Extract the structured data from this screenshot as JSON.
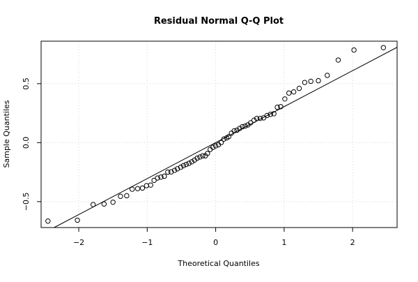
{
  "chart_data": {
    "type": "scatter",
    "title": "Residual Normal Q-Q Plot",
    "xlabel": "Theoretical Quantiles",
    "ylabel": "Sample Quantiles",
    "xlim": [
      -2.55,
      2.65
    ],
    "ylim": [
      -0.72,
      0.86
    ],
    "x_ticks": [
      -2,
      -1,
      0,
      1,
      2
    ],
    "x_tick_labels": [
      "−2",
      "−1",
      "0",
      "1",
      "2"
    ],
    "y_ticks": [
      -0.5,
      0.0,
      0.5
    ],
    "y_tick_labels": [
      "−0.5",
      "0.0",
      "0.5"
    ],
    "grid": true,
    "reference_line": {
      "intercept": 0.0,
      "slope": 0.305
    },
    "points": [
      [
        -2.45,
        -0.665
      ],
      [
        -2.02,
        -0.658
      ],
      [
        -1.79,
        -0.525
      ],
      [
        -1.63,
        -0.52
      ],
      [
        -1.5,
        -0.505
      ],
      [
        -1.39,
        -0.455
      ],
      [
        -1.3,
        -0.45
      ],
      [
        -1.22,
        -0.395
      ],
      [
        -1.14,
        -0.39
      ],
      [
        -1.07,
        -0.385
      ],
      [
        -1.01,
        -0.365
      ],
      [
        -0.95,
        -0.36
      ],
      [
        -0.9,
        -0.32
      ],
      [
        -0.85,
        -0.3
      ],
      [
        -0.8,
        -0.292
      ],
      [
        -0.75,
        -0.285
      ],
      [
        -0.7,
        -0.25
      ],
      [
        -0.65,
        -0.248
      ],
      [
        -0.6,
        -0.235
      ],
      [
        -0.56,
        -0.222
      ],
      [
        -0.51,
        -0.208
      ],
      [
        -0.47,
        -0.195
      ],
      [
        -0.43,
        -0.185
      ],
      [
        -0.39,
        -0.175
      ],
      [
        -0.35,
        -0.163
      ],
      [
        -0.31,
        -0.148
      ],
      [
        -0.27,
        -0.132
      ],
      [
        -0.23,
        -0.122
      ],
      [
        -0.19,
        -0.112
      ],
      [
        -0.15,
        -0.112
      ],
      [
        -0.12,
        -0.092
      ],
      [
        -0.08,
        -0.058
      ],
      [
        -0.04,
        -0.04
      ],
      [
        0.0,
        -0.028
      ],
      [
        0.04,
        -0.018
      ],
      [
        0.08,
        0.0
      ],
      [
        0.12,
        0.03
      ],
      [
        0.16,
        0.04
      ],
      [
        0.19,
        0.05
      ],
      [
        0.23,
        0.08
      ],
      [
        0.27,
        0.1
      ],
      [
        0.31,
        0.105
      ],
      [
        0.35,
        0.12
      ],
      [
        0.39,
        0.135
      ],
      [
        0.43,
        0.14
      ],
      [
        0.47,
        0.15
      ],
      [
        0.51,
        0.168
      ],
      [
        0.56,
        0.19
      ],
      [
        0.6,
        0.205
      ],
      [
        0.65,
        0.205
      ],
      [
        0.7,
        0.21
      ],
      [
        0.75,
        0.23
      ],
      [
        0.8,
        0.24
      ],
      [
        0.85,
        0.245
      ],
      [
        0.9,
        0.3
      ],
      [
        0.95,
        0.305
      ],
      [
        1.01,
        0.37
      ],
      [
        1.07,
        0.42
      ],
      [
        1.14,
        0.43
      ],
      [
        1.22,
        0.46
      ],
      [
        1.3,
        0.51
      ],
      [
        1.39,
        0.52
      ],
      [
        1.5,
        0.525
      ],
      [
        1.63,
        0.57
      ],
      [
        1.79,
        0.7
      ],
      [
        2.02,
        0.785
      ],
      [
        2.45,
        0.805
      ]
    ]
  }
}
